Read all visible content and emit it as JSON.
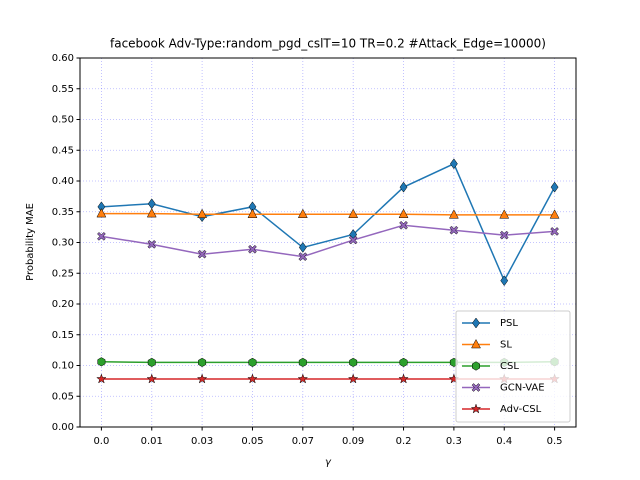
{
  "chart_data": {
    "type": "line",
    "title": "facebook Adv-Type:random_pgd_cslT=10 TR=0.2 #Attack_Edge=10000)",
    "x_label": "γ",
    "y_label": "Probability MAE",
    "categories": [
      "0.0",
      "0.01",
      "0.03",
      "0.05",
      "0.07",
      "0.09",
      "0.2",
      "0.3",
      "0.4",
      "0.5"
    ],
    "series": [
      {
        "name": "PSL",
        "color": "#1f77b4",
        "marker": "diamond",
        "values": [
          0.358,
          0.363,
          0.342,
          0.358,
          0.292,
          0.313,
          0.39,
          0.428,
          0.238,
          0.39
        ]
      },
      {
        "name": "SL",
        "color": "#ff7f0e",
        "marker": "triangle",
        "values": [
          0.347,
          0.347,
          0.346,
          0.346,
          0.346,
          0.346,
          0.346,
          0.345,
          0.345,
          0.345
        ]
      },
      {
        "name": "CSL",
        "color": "#2ca02c",
        "marker": "hexagon",
        "values": [
          0.106,
          0.105,
          0.105,
          0.105,
          0.105,
          0.105,
          0.105,
          0.105,
          0.105,
          0.106
        ]
      },
      {
        "name": "GCN-VAE",
        "color": "#9467bd",
        "marker": "x",
        "values": [
          0.31,
          0.297,
          0.281,
          0.289,
          0.277,
          0.304,
          0.328,
          0.32,
          0.312,
          0.318
        ]
      },
      {
        "name": "Adv-CSL",
        "color": "#d62728",
        "marker": "star",
        "values": [
          0.078,
          0.078,
          0.078,
          0.078,
          0.078,
          0.078,
          0.078,
          0.078,
          0.078,
          0.078
        ]
      }
    ],
    "ylim": [
      0,
      0.6
    ],
    "yticks": [
      {
        "value": 0,
        "label": "0.00"
      },
      0.05,
      {
        "value": 0.1,
        "label": "0.10"
      },
      0.15,
      {
        "value": 0.2,
        "label": "0.20"
      },
      0.25,
      {
        "value": 0.3,
        "label": "0.30"
      },
      0.35,
      {
        "value": 0.4,
        "label": "0.40"
      },
      0.45,
      {
        "value": 0.5,
        "label": "0.50"
      },
      0.55,
      {
        "value": 0.6,
        "label": "0.60"
      }
    ],
    "grid": true,
    "grid_color": "#0000ff",
    "legend": "lower right"
  }
}
